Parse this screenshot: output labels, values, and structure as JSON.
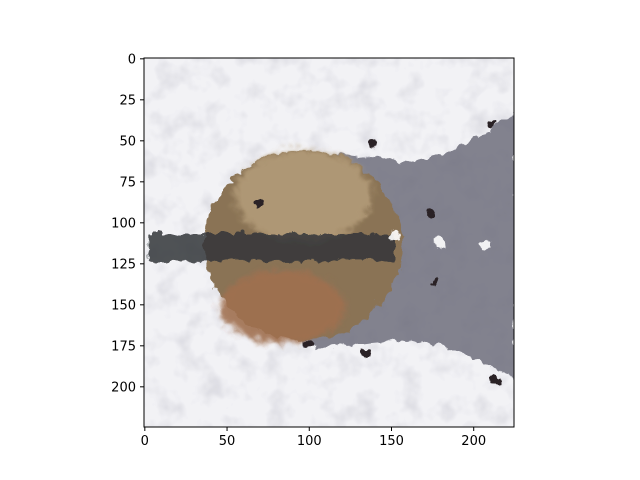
{
  "chart_data": {
    "type": "heatmap",
    "title": "",
    "xlabel": "",
    "ylabel": "",
    "xlim": [
      0,
      224
    ],
    "ylim": [
      224,
      0
    ],
    "x_ticks": [
      0,
      50,
      100,
      150,
      200
    ],
    "y_ticks": [
      0,
      25,
      50,
      75,
      100,
      125,
      150,
      175,
      200
    ],
    "x_tick_labels": [
      "0",
      "50",
      "100",
      "150",
      "200"
    ],
    "y_tick_labels": [
      "0",
      "25",
      "50",
      "75",
      "100",
      "125",
      "150",
      "175",
      "200"
    ],
    "grid": false,
    "image_content": "glitchy texture image of a round brown shape joined to a grey elongated body, horizontally banded by a dark stripe at y≈110, on a white crumpled background",
    "colors": {
      "background": "#f2f2f5",
      "body_brown": "#8a7355",
      "body_tan": "#b59e7a",
      "body_grey": "#6e6e7c",
      "stripe_dark": "#33353a",
      "lower_brown": "#a07050",
      "frame": "#000000"
    }
  }
}
